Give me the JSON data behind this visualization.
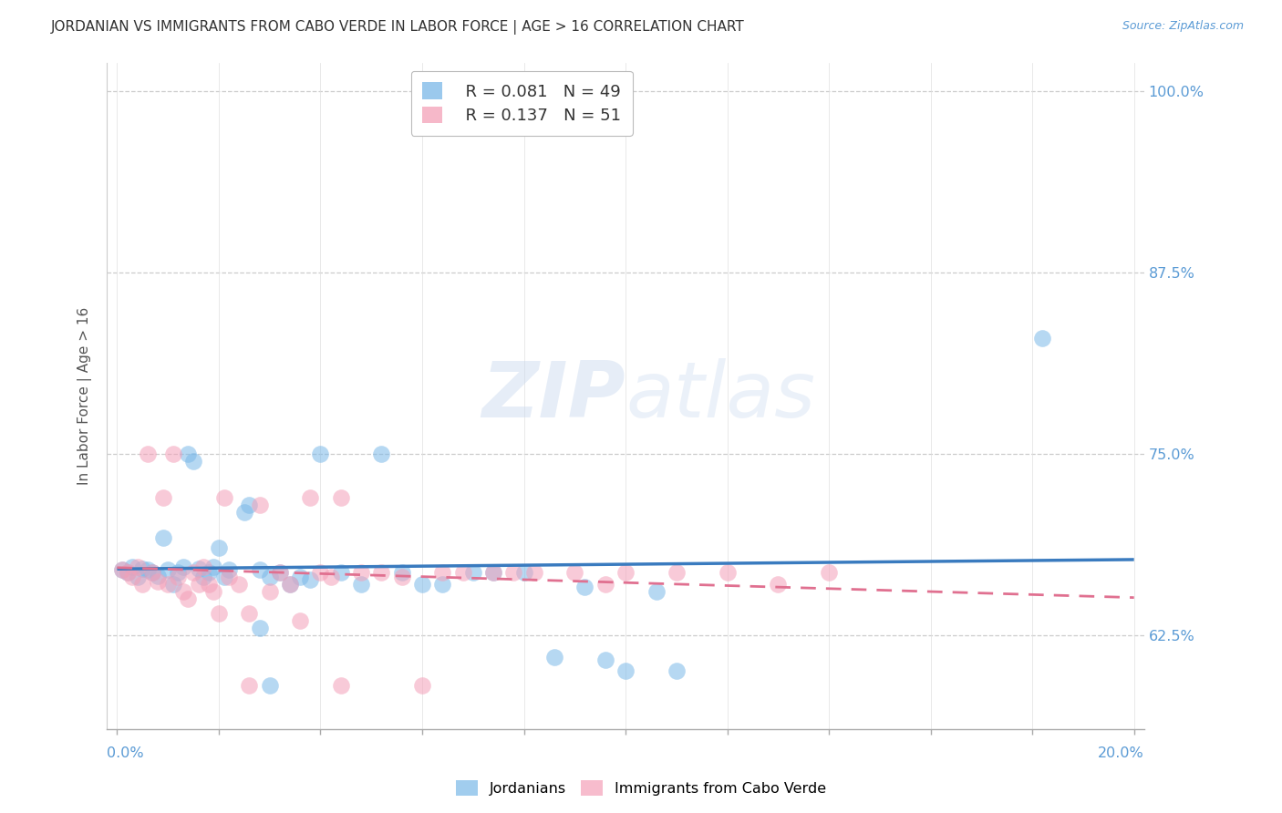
{
  "title": "JORDANIAN VS IMMIGRANTS FROM CABO VERDE IN LABOR FORCE | AGE > 16 CORRELATION CHART",
  "source": "Source: ZipAtlas.com",
  "ylabel": "In Labor Force | Age > 16",
  "watermark": "ZIPatlas",
  "legend_blue_r": "R = 0.081",
  "legend_blue_n": "N = 49",
  "legend_pink_r": "R = 0.137",
  "legend_pink_n": "N = 51",
  "blue_color": "#7ab8e8",
  "pink_color": "#f4a0b8",
  "blue_line_color": "#3a7bbf",
  "pink_line_color": "#e07090",
  "grid_color": "#cccccc",
  "title_color": "#333333",
  "axis_label_color": "#5b9bd5",
  "ytick_vals": [
    0.625,
    0.75,
    0.875,
    1.0
  ],
  "ytick_labels": [
    "62.5%",
    "75.0%",
    "87.5%",
    "100.0%"
  ],
  "ylim": [
    0.56,
    1.02
  ],
  "xlim": [
    -0.002,
    0.202
  ],
  "blue_points": [
    [
      0.001,
      0.67
    ],
    [
      0.002,
      0.668
    ],
    [
      0.003,
      0.672
    ],
    [
      0.004,
      0.665
    ],
    [
      0.005,
      0.671
    ],
    [
      0.006,
      0.67
    ],
    [
      0.007,
      0.668
    ],
    [
      0.008,
      0.666
    ],
    [
      0.009,
      0.692
    ],
    [
      0.01,
      0.67
    ],
    [
      0.011,
      0.66
    ],
    [
      0.012,
      0.668
    ],
    [
      0.013,
      0.672
    ],
    [
      0.014,
      0.75
    ],
    [
      0.015,
      0.745
    ],
    [
      0.016,
      0.671
    ],
    [
      0.017,
      0.665
    ],
    [
      0.018,
      0.668
    ],
    [
      0.019,
      0.672
    ],
    [
      0.02,
      0.685
    ],
    [
      0.021,
      0.665
    ],
    [
      0.022,
      0.67
    ],
    [
      0.025,
      0.71
    ],
    [
      0.026,
      0.715
    ],
    [
      0.028,
      0.67
    ],
    [
      0.03,
      0.665
    ],
    [
      0.032,
      0.668
    ],
    [
      0.034,
      0.66
    ],
    [
      0.036,
      0.665
    ],
    [
      0.038,
      0.663
    ],
    [
      0.04,
      0.75
    ],
    [
      0.044,
      0.668
    ],
    [
      0.048,
      0.66
    ],
    [
      0.052,
      0.75
    ],
    [
      0.056,
      0.668
    ],
    [
      0.06,
      0.66
    ],
    [
      0.064,
      0.66
    ],
    [
      0.07,
      0.668
    ],
    [
      0.074,
      0.668
    ],
    [
      0.08,
      0.668
    ],
    [
      0.086,
      0.61
    ],
    [
      0.092,
      0.658
    ],
    [
      0.096,
      0.608
    ],
    [
      0.1,
      0.6
    ],
    [
      0.106,
      0.655
    ],
    [
      0.11,
      0.6
    ],
    [
      0.028,
      0.63
    ],
    [
      0.03,
      0.59
    ],
    [
      0.182,
      0.83
    ]
  ],
  "pink_points": [
    [
      0.001,
      0.67
    ],
    [
      0.002,
      0.668
    ],
    [
      0.003,
      0.665
    ],
    [
      0.004,
      0.672
    ],
    [
      0.005,
      0.66
    ],
    [
      0.006,
      0.75
    ],
    [
      0.007,
      0.668
    ],
    [
      0.008,
      0.662
    ],
    [
      0.009,
      0.72
    ],
    [
      0.01,
      0.66
    ],
    [
      0.011,
      0.75
    ],
    [
      0.012,
      0.665
    ],
    [
      0.013,
      0.655
    ],
    [
      0.014,
      0.65
    ],
    [
      0.015,
      0.668
    ],
    [
      0.016,
      0.66
    ],
    [
      0.017,
      0.672
    ],
    [
      0.018,
      0.66
    ],
    [
      0.019,
      0.655
    ],
    [
      0.02,
      0.64
    ],
    [
      0.021,
      0.72
    ],
    [
      0.022,
      0.665
    ],
    [
      0.024,
      0.66
    ],
    [
      0.026,
      0.64
    ],
    [
      0.028,
      0.715
    ],
    [
      0.03,
      0.655
    ],
    [
      0.032,
      0.668
    ],
    [
      0.034,
      0.66
    ],
    [
      0.036,
      0.635
    ],
    [
      0.038,
      0.72
    ],
    [
      0.04,
      0.668
    ],
    [
      0.042,
      0.665
    ],
    [
      0.044,
      0.72
    ],
    [
      0.048,
      0.668
    ],
    [
      0.052,
      0.668
    ],
    [
      0.056,
      0.665
    ],
    [
      0.06,
      0.59
    ],
    [
      0.064,
      0.668
    ],
    [
      0.068,
      0.668
    ],
    [
      0.074,
      0.668
    ],
    [
      0.078,
      0.668
    ],
    [
      0.082,
      0.668
    ],
    [
      0.09,
      0.668
    ],
    [
      0.096,
      0.66
    ],
    [
      0.1,
      0.668
    ],
    [
      0.11,
      0.668
    ],
    [
      0.12,
      0.668
    ],
    [
      0.13,
      0.66
    ],
    [
      0.14,
      0.668
    ],
    [
      0.026,
      0.59
    ],
    [
      0.044,
      0.59
    ]
  ]
}
